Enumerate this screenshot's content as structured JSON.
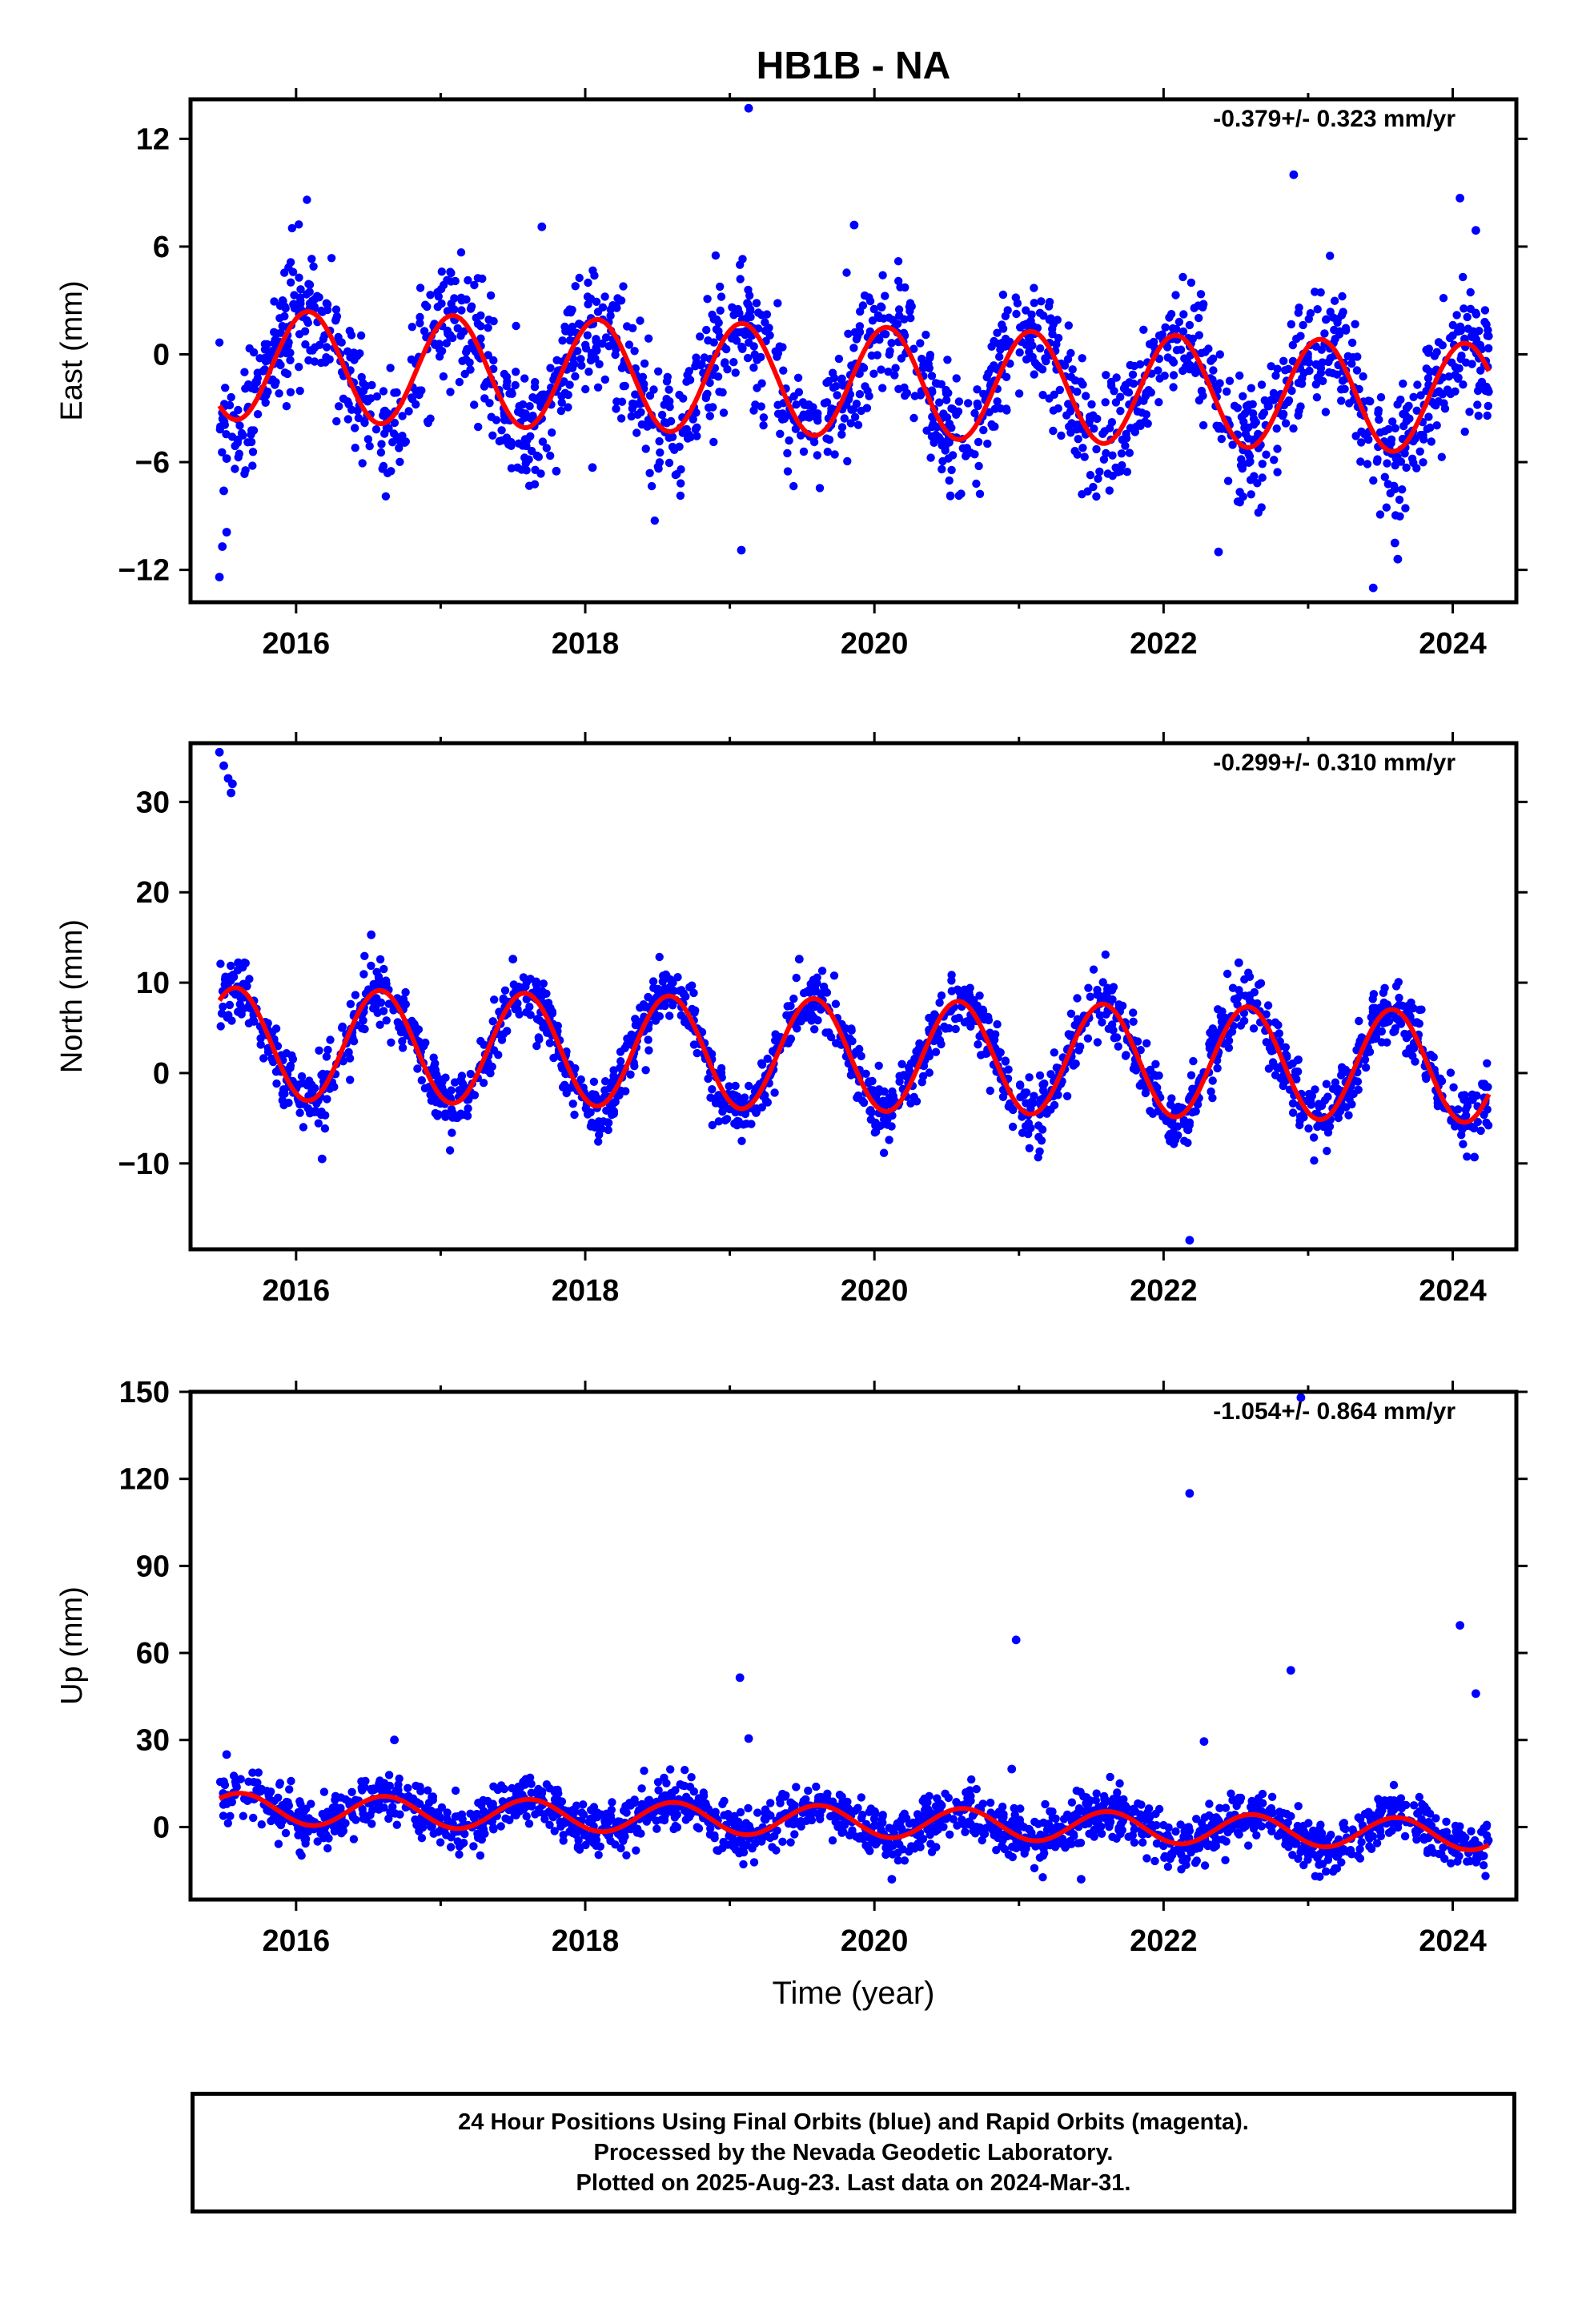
{
  "title": "HB1B - NA",
  "colors": {
    "points": "#0000ff",
    "fit": "#ff0000",
    "axes": "#000000"
  },
  "chart_data": [
    {
      "type": "scatter",
      "panel": "east",
      "ylabel": "East (mm)",
      "xlabel": "",
      "rate": "-0.379+/- 0.323 mm/yr",
      "xlim": [
        2015.27,
        2024.44
      ],
      "ylim": [
        -13.8,
        14.2
      ],
      "xticks": [
        2016,
        2018,
        2020,
        2022,
        2024
      ],
      "yticks": [
        -12,
        -6,
        0,
        6,
        12
      ],
      "grid": false,
      "model": {
        "mean_start": -0.55,
        "trend_per_year": -0.22,
        "cos_amp": 2.65,
        "sin_amp": 1.55,
        "start": 2015.47,
        "end": 2024.25
      },
      "scatter_model": {
        "noise_sd": 1.75,
        "count": 1800,
        "seed": 11
      },
      "outliers": [
        [
          2015.47,
          -12.4
        ],
        [
          2015.49,
          -10.7
        ],
        [
          2015.5,
          -7.6
        ],
        [
          2015.52,
          -9.9
        ],
        [
          2015.52,
          -5.8
        ],
        [
          2019.13,
          13.7
        ],
        [
          2019.08,
          -10.9
        ],
        [
          2019.86,
          7.2
        ],
        [
          2017.7,
          7.1
        ],
        [
          2022.9,
          10.0
        ],
        [
          2023.45,
          -13.0
        ],
        [
          2023.62,
          -11.4
        ],
        [
          2024.05,
          8.7
        ],
        [
          2024.16,
          6.9
        ],
        [
          2022.38,
          -11.0
        ],
        [
          2023.6,
          -10.5
        ],
        [
          2018.05,
          -6.3
        ],
        [
          2017.8,
          -6.5
        ]
      ]
    },
    {
      "type": "scatter",
      "panel": "north",
      "ylabel": "North (mm)",
      "xlabel": "",
      "rate": "-0.299+/- 0.310 mm/yr",
      "xlim": [
        2015.27,
        2024.44
      ],
      "ylim": [
        -19.5,
        36.5
      ],
      "xticks": [
        2016,
        2018,
        2020,
        2022,
        2024
      ],
      "yticks": [
        -10,
        0,
        10,
        20,
        30
      ],
      "grid": false,
      "model": {
        "mean_start": 3.3,
        "trend_per_year": -0.3,
        "cos_amp": -5.4,
        "sin_amp": -3.0,
        "start": 2015.47,
        "end": 2024.25
      },
      "scatter_model": {
        "noise_sd": 1.7,
        "count": 1800,
        "seed": 23
      },
      "outliers": [
        [
          2015.47,
          35.5
        ],
        [
          2015.5,
          34.0
        ],
        [
          2015.53,
          32.6
        ],
        [
          2015.55,
          31.0
        ],
        [
          2015.56,
          32.0
        ],
        [
          2016.18,
          -9.5
        ],
        [
          2022.18,
          -18.5
        ],
        [
          2016.52,
          15.3
        ],
        [
          2017.5,
          12.6
        ],
        [
          2019.48,
          12.6
        ],
        [
          2022.52,
          12.2
        ],
        [
          2024.15,
          -9.3
        ],
        [
          2015.6,
          12.2
        ],
        [
          2015.62,
          12.0
        ]
      ]
    },
    {
      "type": "scatter",
      "panel": "up",
      "ylabel": "Up (mm)",
      "xlabel": "Time (year)",
      "rate": "-1.054+/- 0.864 mm/yr",
      "xlim": [
        2015.27,
        2024.44
      ],
      "ylim": [
        -25.0,
        150.0
      ],
      "xticks": [
        2016,
        2018,
        2020,
        2022,
        2024
      ],
      "yticks": [
        0,
        30,
        60,
        90,
        120,
        150
      ],
      "grid": false,
      "model": {
        "mean_start": 6.5,
        "trend_per_year": -1.05,
        "cos_amp": -4.0,
        "sin_amp": -3.5,
        "start": 2015.47,
        "end": 2024.25
      },
      "scatter_model": {
        "noise_sd": 4.3,
        "count": 1800,
        "seed": 37
      },
      "outliers": [
        [
          2019.07,
          51.5
        ],
        [
          2019.13,
          30.5
        ],
        [
          2020.98,
          64.5
        ],
        [
          2020.95,
          20.0
        ],
        [
          2022.18,
          115.0
        ],
        [
          2022.28,
          29.5
        ],
        [
          2022.88,
          54.0
        ],
        [
          2022.95,
          148.0
        ],
        [
          2024.05,
          69.5
        ],
        [
          2024.16,
          46.0
        ],
        [
          2016.68,
          30.0
        ],
        [
          2015.52,
          25.0
        ],
        [
          2020.12,
          -18.0
        ],
        [
          2021.43,
          -18.0
        ]
      ]
    }
  ],
  "caption": {
    "line1": "24 Hour Positions Using Final Orbits (blue) and Rapid Orbits (magenta).",
    "line2": "Processed by the Nevada Geodetic Laboratory.",
    "line3": "Plotted on 2025-Aug-23. Last data on 2024-Mar-31."
  }
}
